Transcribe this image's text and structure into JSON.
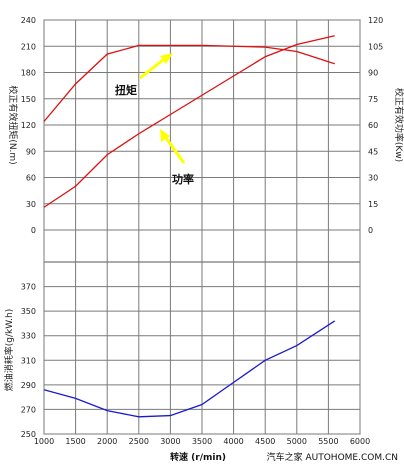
{
  "chart_data": [
    {
      "type": "line",
      "panel": "top",
      "x": [
        1000,
        1500,
        2000,
        2500,
        3000,
        3500,
        4000,
        4500,
        5000,
        5600
      ],
      "xlim": [
        1000,
        6000
      ],
      "ylim_left": [
        0,
        240
      ],
      "ylim_right": [
        0,
        120
      ],
      "left_ticks": [
        "0",
        "30",
        "60",
        "90",
        "120",
        "150",
        "180",
        "210",
        "240"
      ],
      "right_ticks": [
        "0",
        "15",
        "30",
        "45",
        "60",
        "75",
        "90",
        "105",
        "120"
      ],
      "ylabel_left": "校正有效扭矩(N.m)",
      "ylabel_right": "校正有效功率(Kw)",
      "series": [
        {
          "name": "扭矩",
          "axis": "left",
          "values": [
            124,
            167,
            201,
            211,
            211,
            211,
            210,
            209,
            204,
            190
          ]
        },
        {
          "name": "功率",
          "axis": "right",
          "values": [
            13,
            25,
            43,
            55,
            66,
            77,
            88,
            99,
            106,
            111
          ]
        }
      ],
      "annotations": [
        "扭矩",
        "功率"
      ],
      "colors": {
        "curves": "#dd1111",
        "arrow": "#ffff00"
      }
    },
    {
      "type": "line",
      "panel": "bottom",
      "x": [
        1000,
        1500,
        2000,
        2500,
        3000,
        3500,
        4000,
        4500,
        5000,
        5600
      ],
      "xlim": [
        1000,
        6000
      ],
      "ylim": [
        250,
        390
      ],
      "y_ticks": [
        "250",
        "270",
        "290",
        "310",
        "330",
        "350",
        "370"
      ],
      "ylabel": "燃油消耗率(g/kW.h)",
      "series": [
        {
          "name": "",
          "values": [
            286,
            279,
            269,
            264,
            265,
            274,
            292,
            310,
            322,
            342
          ]
        }
      ],
      "colors": {
        "curve": "#1a1ad0"
      }
    }
  ],
  "x_ticks": [
    "1000",
    "1500",
    "2000",
    "2500",
    "3000",
    "3500",
    "4000",
    "4500",
    "5000",
    "5500",
    "6000"
  ],
  "xlabel": "转速 (r/min)",
  "watermark": "汽车之家 AUTOHOME.COM.CN"
}
